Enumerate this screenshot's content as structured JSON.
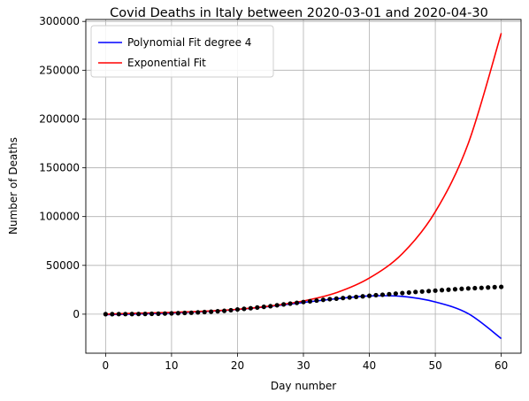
{
  "chart_data": {
    "type": "line",
    "title": "Covid Deaths in Italy between 2020-03-01 and 2020-04-30",
    "xlabel": "Day number",
    "ylabel": "Number of Deaths",
    "xlim": [
      -3,
      63
    ],
    "ylim": [
      -40000,
      302000
    ],
    "xticks": [
      0,
      10,
      20,
      30,
      40,
      50,
      60
    ],
    "xtick_labels": [
      "0",
      "10",
      "20",
      "30",
      "40",
      "50",
      "60"
    ],
    "yticks": [
      0,
      50000,
      100000,
      150000,
      200000,
      250000,
      300000
    ],
    "ytick_labels": [
      "0",
      "50000",
      "100000",
      "150000",
      "200000",
      "250000",
      "300000"
    ],
    "grid": true,
    "legend": {
      "position": "upper-left",
      "entries": [
        "Polynomial Fit degree 4",
        "Exponential Fit"
      ]
    },
    "series": [
      {
        "name": "Polynomial Fit degree 4",
        "kind": "line",
        "color": "#0000ff",
        "x": [
          0,
          5,
          10,
          15,
          20,
          25,
          30,
          35,
          40,
          45,
          50,
          55,
          60
        ],
        "values": [
          -500,
          200,
          1200,
          2700,
          4800,
          8000,
          12000,
          15800,
          18700,
          18200,
          12500,
          500,
          -25000
        ]
      },
      {
        "name": "Exponential Fit",
        "kind": "line",
        "color": "#ff0000",
        "x": [
          0,
          5,
          10,
          15,
          20,
          25,
          30,
          35,
          40,
          45,
          50,
          55,
          60
        ],
        "values": [
          0,
          1000,
          1800,
          3000,
          5000,
          8400,
          13500,
          22000,
          37000,
          62000,
          105000,
          175000,
          288000
        ]
      },
      {
        "kind": "scatter",
        "color": "#000000",
        "x": [
          0,
          1,
          2,
          3,
          4,
          5,
          6,
          7,
          8,
          9,
          10,
          11,
          12,
          13,
          14,
          15,
          16,
          17,
          18,
          19,
          20,
          21,
          22,
          23,
          24,
          25,
          26,
          27,
          28,
          29,
          30,
          31,
          32,
          33,
          34,
          35,
          36,
          37,
          38,
          39,
          40,
          41,
          42,
          43,
          44,
          45,
          46,
          47,
          48,
          49,
          50,
          51,
          52,
          53,
          54,
          55,
          56,
          57,
          58,
          59,
          60
        ],
        "values": [
          34,
          52,
          79,
          107,
          148,
          197,
          233,
          366,
          463,
          631,
          827,
          1016,
          1266,
          1441,
          1809,
          2158,
          2503,
          2978,
          3405,
          4032,
          4825,
          5476,
          6077,
          6820,
          7503,
          8165,
          9134,
          10023,
          10779,
          11591,
          12428,
          13155,
          13915,
          14681,
          15362,
          15887,
          16523,
          17127,
          17669,
          18279,
          18849,
          19468,
          19899,
          20465,
          21067,
          21645,
          22170,
          22745,
          23227,
          23660,
          24114,
          24648,
          25085,
          25549,
          25969,
          26384,
          26644,
          26977,
          27359,
          27682,
          27967
        ]
      }
    ]
  }
}
